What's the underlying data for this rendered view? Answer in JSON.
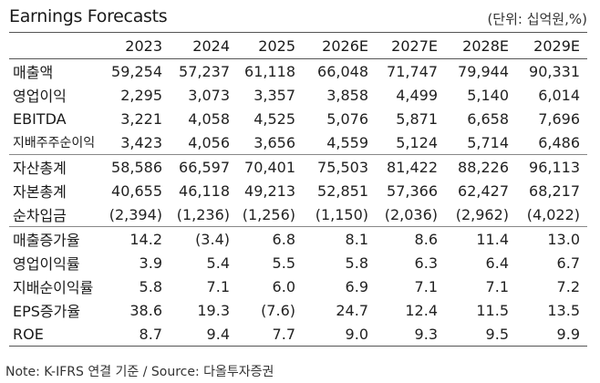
{
  "title": "Earnings Forecasts",
  "unit": "(단위: 십억원,%)",
  "columns": [
    "2023",
    "2024",
    "2025",
    "2026E",
    "2027E",
    "2028E",
    "2029E"
  ],
  "rows": [
    {
      "label": "매출액",
      "values": [
        "59,254",
        "57,237",
        "61,118",
        "66,048",
        "71,747",
        "79,944",
        "90,331"
      ]
    },
    {
      "label": "영업이익",
      "values": [
        "2,295",
        "3,073",
        "3,357",
        "3,858",
        "4,499",
        "5,140",
        "6,014"
      ]
    },
    {
      "label": "EBITDA",
      "values": [
        "3,221",
        "4,058",
        "4,525",
        "5,076",
        "5,871",
        "6,658",
        "7,696"
      ]
    },
    {
      "label": "지배주주순이익",
      "values": [
        "3,423",
        "4,056",
        "3,656",
        "4,559",
        "5,124",
        "5,714",
        "6,486"
      ]
    },
    {
      "label": "자산총계",
      "values": [
        "58,586",
        "66,597",
        "70,401",
        "75,503",
        "81,422",
        "88,226",
        "96,113"
      ]
    },
    {
      "label": "자본총계",
      "values": [
        "40,655",
        "46,118",
        "49,213",
        "52,851",
        "57,366",
        "62,427",
        "68,217"
      ]
    },
    {
      "label": "순차입금",
      "values": [
        "(2,394)",
        "(1,236)",
        "(1,256)",
        "(1,150)",
        "(2,036)",
        "(2,962)",
        "(4,022)"
      ]
    },
    {
      "label": "매출증가율",
      "values": [
        "14.2",
        "(3.4)",
        "6.8",
        "8.1",
        "8.6",
        "11.4",
        "13.0"
      ]
    },
    {
      "label": "영업이익률",
      "values": [
        "3.9",
        "5.4",
        "5.5",
        "5.8",
        "6.3",
        "6.4",
        "6.7"
      ]
    },
    {
      "label": "지배순이익률",
      "values": [
        "5.8",
        "7.1",
        "6.0",
        "6.9",
        "7.1",
        "7.1",
        "7.2"
      ]
    },
    {
      "label": "EPS증가율",
      "values": [
        "38.6",
        "19.3",
        "(7.6)",
        "24.7",
        "12.4",
        "11.5",
        "13.5"
      ]
    },
    {
      "label": "ROE",
      "values": [
        "8.7",
        "9.4",
        "7.7",
        "9.0",
        "9.3",
        "9.5",
        "9.9"
      ]
    }
  ],
  "note": "Note: K-IFRS 연결 기준 / Source: 다올투자증권"
}
